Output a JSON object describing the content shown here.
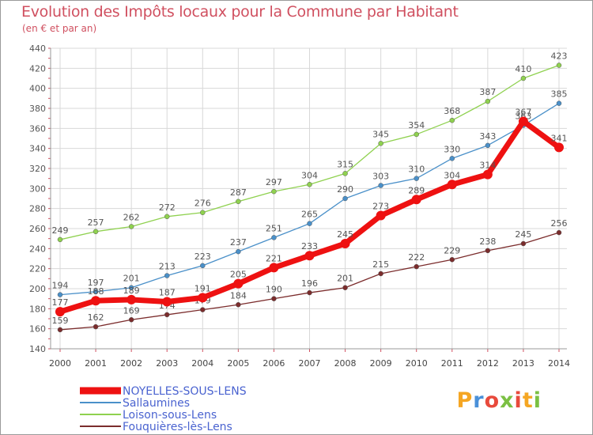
{
  "chart_data": {
    "type": "line",
    "title": "Evolution des Impôts locaux pour la Commune par Habitant",
    "subtitle": "(en € et par an)",
    "categories": [
      "2000",
      "2001",
      "2002",
      "2003",
      "2004",
      "2005",
      "2006",
      "2007",
      "2008",
      "2009",
      "2010",
      "2011",
      "2012",
      "2013",
      "2014"
    ],
    "ylim": [
      140,
      440
    ],
    "yticks": [
      140,
      160,
      180,
      200,
      220,
      240,
      260,
      280,
      300,
      320,
      340,
      360,
      380,
      400,
      420,
      440
    ],
    "grid": true,
    "legend_position": "bottom-left",
    "series": [
      {
        "name": "Fouquières-lès-Lens",
        "color": "#7b2c2c",
        "values": [
          159,
          162,
          169,
          174,
          179,
          184,
          190,
          196,
          201,
          215,
          222,
          229,
          238,
          245,
          256
        ]
      },
      {
        "name": "Loison-sous-Lens",
        "color": "#8fd14f",
        "values": [
          249,
          257,
          262,
          272,
          276,
          287,
          297,
          304,
          315,
          345,
          354,
          368,
          387,
          410,
          423
        ]
      },
      {
        "name": "Sallaumines",
        "color": "#4a90c9",
        "values": [
          194,
          197,
          201,
          213,
          223,
          237,
          251,
          265,
          290,
          303,
          310,
          330,
          343,
          363,
          385
        ]
      },
      {
        "name": "NOYELLES-SOUS-LENS",
        "color": "#ee1111",
        "values": [
          177,
          188,
          189,
          187,
          191,
          205,
          221,
          233,
          245,
          273,
          289,
          304,
          314,
          367,
          341
        ]
      }
    ],
    "legend_order": [
      "NOYELLES-SOUS-LENS",
      "Sallaumines",
      "Loison-sous-Lens",
      "Fouquières-lès-Lens"
    ]
  },
  "logo": {
    "text": "Proxiti",
    "letters": [
      "P",
      "r",
      "o",
      "x",
      "i",
      "t",
      "i"
    ]
  }
}
